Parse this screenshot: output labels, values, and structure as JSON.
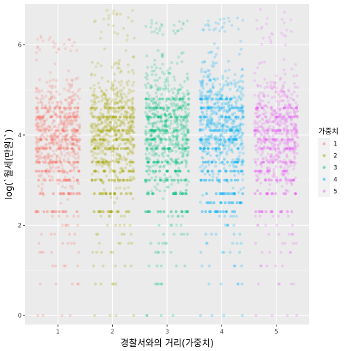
{
  "chart_data": {
    "type": "scatter",
    "subtype": "jitter",
    "xlabel": "경찰서와의 거리(가중치)",
    "ylabel": "log(`월세(만원)`)",
    "x_ticks": [
      "1",
      "2",
      "3",
      "4",
      "5"
    ],
    "y_ticks": [
      0,
      2,
      4,
      6
    ],
    "xlim": [
      0.4,
      5.6
    ],
    "ylim": [
      -0.2,
      6.9
    ],
    "grid": true,
    "legend": {
      "title": "가중치",
      "position": "right",
      "entries": [
        "1",
        "2",
        "3",
        "4",
        "5"
      ]
    },
    "series": [
      {
        "name": "1",
        "x": 1,
        "color": "#F8766D",
        "dense_range": [
          2.3,
          5.8
        ],
        "band_levels": [
          2.3,
          2.7,
          3.0,
          3.2,
          3.4,
          3.7,
          3.9,
          4.1,
          4.4,
          4.6
        ],
        "sparse_levels": [
          0,
          0.7,
          1.1,
          1.4,
          1.6,
          1.8,
          2.0,
          2.2
        ],
        "max": 6.2
      },
      {
        "name": "2",
        "x": 2,
        "color": "#A3A500",
        "dense_range": [
          2.3,
          6.1
        ],
        "band_levels": [
          2.3,
          2.7,
          3.0,
          3.2,
          3.4,
          3.7,
          3.9,
          4.1,
          4.4,
          4.6
        ],
        "sparse_levels": [
          0,
          0.7,
          1.1,
          1.4,
          1.6,
          1.8,
          2.0,
          2.2
        ],
        "max": 6.8
      },
      {
        "name": "3",
        "x": 3,
        "color": "#00BF7D",
        "dense_range": [
          2.3,
          6.2
        ],
        "band_levels": [
          2.3,
          2.7,
          3.0,
          3.2,
          3.4,
          3.7,
          3.9,
          4.1,
          4.4,
          4.6,
          4.8
        ],
        "sparse_levels": [
          0,
          0.7,
          1.1,
          1.4,
          1.6,
          1.8,
          2.0,
          2.2
        ],
        "max": 6.6
      },
      {
        "name": "4",
        "x": 4,
        "color": "#00B0F6",
        "dense_range": [
          2.3,
          6.3
        ],
        "band_levels": [
          2.3,
          2.5,
          2.7,
          3.0,
          3.2,
          3.4,
          3.7,
          3.9,
          4.1,
          4.4,
          4.6,
          4.8
        ],
        "sparse_levels": [
          0,
          0.7,
          1.1,
          1.4,
          1.6,
          1.8,
          2.0,
          2.2
        ],
        "max": 6.6
      },
      {
        "name": "5",
        "x": 5,
        "color": "#E76BF3",
        "dense_range": [
          2.3,
          6.0
        ],
        "band_levels": [
          2.3,
          2.7,
          3.0,
          3.2,
          3.4,
          3.7,
          3.9,
          4.1,
          4.4,
          4.6
        ],
        "sparse_levels": [
          0,
          0.7,
          1.1,
          1.4,
          1.6,
          1.8,
          2.0,
          2.2
        ],
        "max": 6.8
      }
    ]
  },
  "colors": {
    "panel_background": "#EBEBEB",
    "grid_major": "#FFFFFF",
    "legend_key_background": "#F2F2F2"
  }
}
